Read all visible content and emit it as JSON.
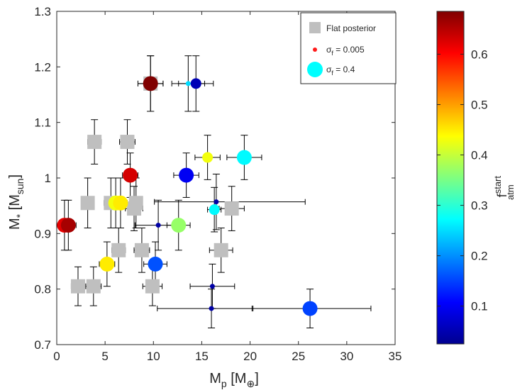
{
  "chart_data": {
    "type": "scatter",
    "xlabel": {
      "main": "M",
      "sub": "p",
      "unit": " [M",
      "unit_sub": "⊕",
      "close": "]"
    },
    "ylabel": {
      "main": "M",
      "sub": "*",
      "unit": " [M",
      "unit_sub": "sun",
      "close": "]"
    },
    "xlim": [
      0,
      35
    ],
    "ylim": [
      0.7,
      1.3
    ],
    "xticks": [
      0,
      5,
      10,
      15,
      20,
      25,
      30,
      35
    ],
    "yticks": [
      0.7,
      0.8,
      0.9,
      1,
      1.1,
      1.2,
      1.3
    ],
    "grid": false,
    "legend": {
      "position": "top-right",
      "items": [
        {
          "marker": "square-gray",
          "label": "Flat posterior"
        },
        {
          "marker": "dot-small-red",
          "label_main": "σ",
          "label_sub": "f",
          "label_rest": " = 0.005"
        },
        {
          "marker": "dot-large-cyan",
          "label_main": "σ",
          "label_sub": "f",
          "label_rest": " = 0.4"
        }
      ]
    },
    "colorbar": {
      "range": [
        0.025,
        0.685
      ],
      "ticks": [
        0.1,
        0.2,
        0.3,
        0.4,
        0.5,
        0.6
      ],
      "label": "f",
      "label_sup": "start",
      "label_sub": "atm"
    },
    "flat_posterior": [
      {
        "x": 9.7,
        "y": 1.17,
        "xerr": [
          1.3,
          1.3
        ],
        "yerr": [
          0.05,
          0.05
        ]
      },
      {
        "x": 3.9,
        "y": 1.065,
        "xerr": [
          0.7,
          0.7
        ],
        "yerr": [
          0.04,
          0.04
        ]
      },
      {
        "x": 7.3,
        "y": 1.065,
        "xerr": [
          0.8,
          0.8
        ],
        "yerr": [
          0.04,
          0.04
        ]
      },
      {
        "x": 3.2,
        "y": 0.955,
        "xerr": [
          0.6,
          0.6
        ],
        "yerr": [
          0.045,
          0.045
        ]
      },
      {
        "x": 5.6,
        "y": 0.955,
        "xerr": [
          0.7,
          0.7
        ],
        "yerr": [
          0.045,
          0.045
        ]
      },
      {
        "x": 8.2,
        "y": 0.955,
        "xerr": [
          0.6,
          0.6
        ],
        "yerr": [
          0.045,
          0.045
        ]
      },
      {
        "x": 8.0,
        "y": 0.945,
        "xerr": [
          0.9,
          0.9
        ],
        "yerr": [
          0.04,
          0.04
        ]
      },
      {
        "x": 18.1,
        "y": 0.945,
        "xerr": [
          1.3,
          1.3
        ],
        "yerr": [
          0.04,
          0.04
        ]
      },
      {
        "x": 6.4,
        "y": 0.87,
        "xerr": [
          0.7,
          0.7
        ],
        "yerr": [
          0.04,
          0.04
        ]
      },
      {
        "x": 8.8,
        "y": 0.87,
        "xerr": [
          0.8,
          0.8
        ],
        "yerr": [
          0.04,
          0.04
        ]
      },
      {
        "x": 17.0,
        "y": 0.87,
        "xerr": [
          1.2,
          1.2
        ],
        "yerr": [
          0.04,
          0.04
        ]
      },
      {
        "x": 2.2,
        "y": 0.805,
        "xerr": [
          0.7,
          0.7
        ],
        "yerr": [
          0.035,
          0.035
        ]
      },
      {
        "x": 3.8,
        "y": 0.805,
        "xerr": [
          0.8,
          0.8
        ],
        "yerr": [
          0.035,
          0.035
        ]
      },
      {
        "x": 9.9,
        "y": 0.805,
        "xerr": [
          1.0,
          1.0
        ],
        "yerr": [
          0.035,
          0.035
        ]
      }
    ],
    "sigma_points": [
      {
        "x": 9.7,
        "y": 1.17,
        "xerr": [
          1.3,
          1.3
        ],
        "yerr": [
          0.05,
          0.05
        ],
        "f": 0.685,
        "size": "large"
      },
      {
        "x": 13.6,
        "y": 1.17,
        "xerr": [
          1.7,
          1.7
        ],
        "yerr": [
          0.05,
          0.05
        ],
        "f": 0.25,
        "size": "small"
      },
      {
        "x": 14.4,
        "y": 1.17,
        "xerr": [
          1.8,
          1.8
        ],
        "yerr": [
          0.05,
          0.05
        ],
        "f": 0.06,
        "size": "medium"
      },
      {
        "x": 7.6,
        "y": 1.005,
        "xerr": [
          0.8,
          0.8
        ],
        "yerr": [
          0.04,
          0.04
        ],
        "f": 0.63,
        "size": "large"
      },
      {
        "x": 13.4,
        "y": 1.005,
        "xerr": [
          1.3,
          1.3
        ],
        "yerr": [
          0.04,
          0.04
        ],
        "f": 0.1,
        "size": "large"
      },
      {
        "x": 15.6,
        "y": 1.037,
        "xerr": [
          1.3,
          1.3
        ],
        "yerr": [
          0.04,
          0.04
        ],
        "f": 0.43,
        "size": "medium"
      },
      {
        "x": 19.4,
        "y": 1.037,
        "xerr": [
          1.8,
          1.8
        ],
        "yerr": [
          0.04,
          0.04
        ],
        "f": 0.27,
        "size": "large"
      },
      {
        "x": 0.8,
        "y": 0.915,
        "xerr": [
          0.8,
          0.8
        ],
        "yerr": [
          0.045,
          0.045
        ],
        "f": 0.62,
        "size": "large"
      },
      {
        "x": 1.2,
        "y": 0.915,
        "xerr": [
          0.8,
          0.8
        ],
        "yerr": [
          0.045,
          0.045
        ],
        "f": 0.66,
        "size": "large"
      },
      {
        "x": 6.1,
        "y": 0.955,
        "xerr": [
          0.7,
          0.7
        ],
        "yerr": [
          0.045,
          0.045
        ],
        "f": 0.43,
        "size": "large"
      },
      {
        "x": 6.6,
        "y": 0.955,
        "xerr": [
          0.7,
          0.7
        ],
        "yerr": [
          0.045,
          0.045
        ],
        "f": 0.45,
        "size": "large"
      },
      {
        "x": 10.5,
        "y": 0.915,
        "xerr": [
          2.4,
          2.4
        ],
        "yerr": [
          0.045,
          0.045
        ],
        "f": 0.05,
        "size": "small"
      },
      {
        "x": 12.6,
        "y": 0.915,
        "xerr": [
          1.2,
          1.2
        ],
        "yerr": [
          0.045,
          0.045
        ],
        "f": 0.37,
        "size": "large"
      },
      {
        "x": 16.3,
        "y": 0.943,
        "xerr": [
          0.7,
          0.7
        ],
        "yerr": [
          0.04,
          0.04
        ],
        "f": 0.27,
        "size": "medium"
      },
      {
        "x": 16.5,
        "y": 0.957,
        "xerr": [
          6.4,
          9.2
        ],
        "yerr": [
          0.05,
          0.05
        ],
        "f": 0.05,
        "size": "small"
      },
      {
        "x": 5.2,
        "y": 0.845,
        "xerr": [
          0.8,
          0.8
        ],
        "yerr": [
          0.04,
          0.04
        ],
        "f": 0.45,
        "size": "large"
      },
      {
        "x": 10.2,
        "y": 0.845,
        "xerr": [
          1.2,
          1.2
        ],
        "yerr": [
          0.04,
          0.04
        ],
        "f": 0.16,
        "size": "large"
      },
      {
        "x": 16.1,
        "y": 0.805,
        "xerr": [
          2.3,
          2.3
        ],
        "yerr": [
          0.04,
          0.04
        ],
        "f": 0.05,
        "size": "small"
      },
      {
        "x": 16.0,
        "y": 0.765,
        "xerr": [
          5.6,
          4.3
        ],
        "yerr": [
          0.035,
          0.035
        ],
        "f": 0.05,
        "size": "small"
      },
      {
        "x": 26.2,
        "y": 0.765,
        "xerr": [
          6.0,
          6.3
        ],
        "yerr": [
          0.035,
          0.035
        ],
        "f": 0.15,
        "size": "large"
      }
    ]
  }
}
